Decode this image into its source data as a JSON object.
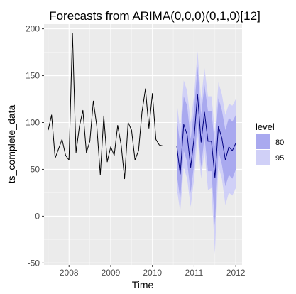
{
  "chart_data": {
    "type": "line",
    "title": "Forecasts from ARIMA(0,0,0)(0,1,0)[12]",
    "xlabel": "Time",
    "ylabel": "ts_complete_data",
    "xlim": [
      2007.4,
      2012.15
    ],
    "ylim": [
      -52,
      205
    ],
    "x_ticks": [
      2008,
      2009,
      2010,
      2011,
      2012
    ],
    "x_tick_labels": [
      "2008",
      "2009",
      "2010",
      "2011",
      "2012"
    ],
    "y_ticks": [
      -50,
      0,
      50,
      100,
      150,
      200
    ],
    "y_tick_labels": [
      "-50",
      "0",
      "50",
      "100",
      "150",
      "200"
    ],
    "grid": true,
    "background": "#ebebeb",
    "legend": {
      "title": "level",
      "position": "right",
      "items": [
        {
          "label": "80",
          "color": "#a9a9ef"
        },
        {
          "label": "95",
          "color": "#d0d0f7"
        }
      ]
    },
    "series": [
      {
        "role": "observed",
        "color": "#000000",
        "x": [
          2007.5,
          2007.583,
          2007.667,
          2007.75,
          2007.833,
          2007.917,
          2008.0,
          2008.083,
          2008.167,
          2008.25,
          2008.333,
          2008.417,
          2008.5,
          2008.583,
          2008.667,
          2008.75,
          2008.833,
          2008.917,
          2009.0,
          2009.083,
          2009.167,
          2009.25,
          2009.333,
          2009.417,
          2009.5,
          2009.583,
          2009.667,
          2009.75,
          2009.833,
          2009.917,
          2010.0,
          2010.083,
          2010.167,
          2010.25,
          2010.333,
          2010.417,
          2010.5
        ],
        "y": [
          92,
          108,
          62,
          72,
          82,
          65,
          60,
          195,
          68,
          96,
          113,
          68,
          80,
          123,
          96,
          44,
          107,
          58,
          74,
          65,
          97,
          76,
          40,
          100,
          92,
          60,
          70,
          111,
          136,
          94,
          131,
          82,
          76,
          75,
          75,
          75,
          75
        ]
      },
      {
        "role": "forecast",
        "color": "#000080",
        "x": [
          2010.583,
          2010.667,
          2010.75,
          2010.833,
          2010.917,
          2011.0,
          2011.083,
          2011.167,
          2011.25,
          2011.333,
          2011.417,
          2011.5,
          2011.583,
          2011.667,
          2011.75,
          2011.833,
          2011.917,
          2012.0
        ],
        "y": [
          75,
          45,
          98,
          87,
          52,
          84,
          130,
          79,
          111,
          80,
          80,
          41,
          96,
          83,
          60,
          74,
          70,
          78
        ]
      }
    ],
    "intervals": [
      {
        "level": "95",
        "x": [
          2010.583,
          2010.667,
          2010.75,
          2010.833,
          2010.917,
          2011.0,
          2011.083,
          2011.167,
          2011.25,
          2011.333,
          2011.417,
          2011.5,
          2011.583,
          2011.667,
          2011.75,
          2011.833,
          2011.917,
          2012.0
        ],
        "lower": [
          30,
          5,
          52,
          40,
          10,
          40,
          85,
          40,
          70,
          28,
          30,
          -40,
          53,
          40,
          12,
          25,
          22,
          30
        ],
        "upper": [
          122,
          92,
          145,
          134,
          100,
          130,
          176,
          125,
          158,
          128,
          128,
          90,
          143,
          130,
          108,
          120,
          118,
          125
        ]
      },
      {
        "level": "80",
        "x": [
          2010.583,
          2010.667,
          2010.75,
          2010.833,
          2010.917,
          2011.0,
          2011.083,
          2011.167,
          2011.25,
          2011.333,
          2011.417,
          2011.5,
          2011.583,
          2011.667,
          2011.75,
          2011.833,
          2011.917,
          2012.0
        ],
        "lower": [
          45,
          18,
          70,
          58,
          25,
          56,
          100,
          52,
          85,
          48,
          48,
          -10,
          70,
          55,
          32,
          44,
          40,
          50
        ],
        "upper": [
          106,
          75,
          128,
          118,
          82,
          114,
          160,
          108,
          140,
          112,
          112,
          74,
          126,
          113,
          92,
          105,
          101,
          108
        ]
      }
    ]
  }
}
